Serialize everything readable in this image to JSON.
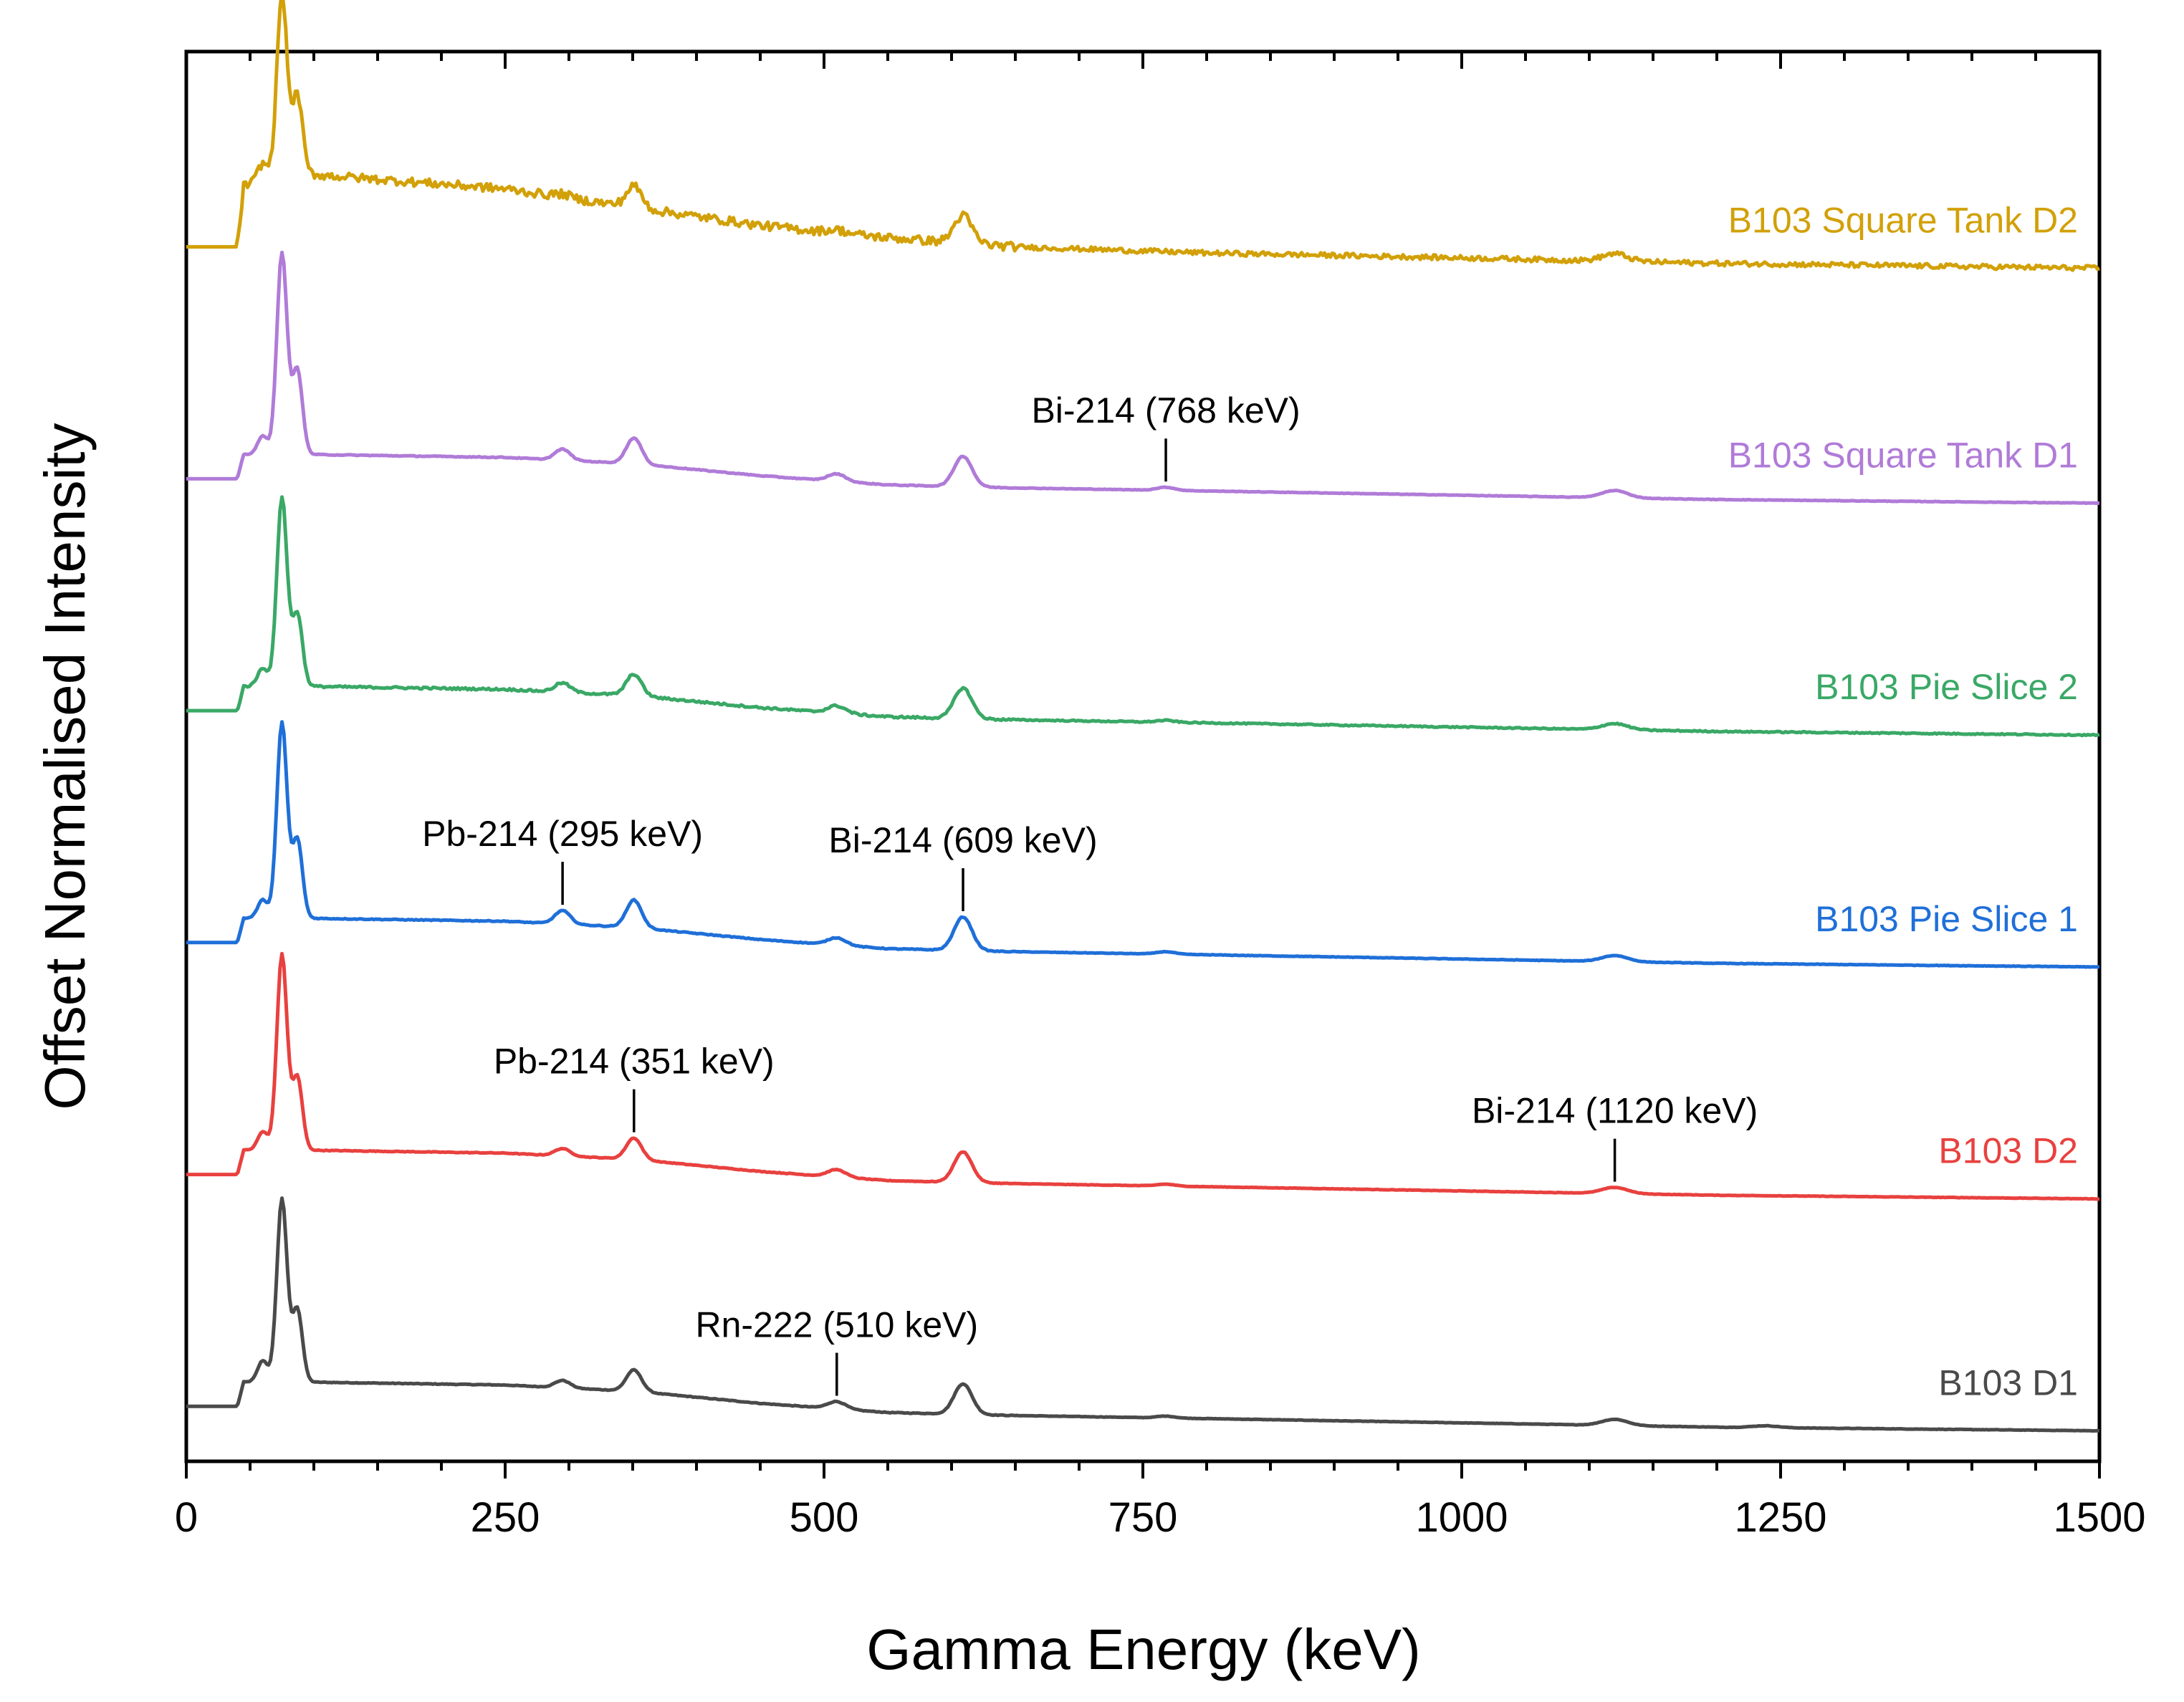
{
  "chart_data": {
    "type": "line",
    "title": "",
    "xlabel": "Gamma Energy (keV)",
    "ylabel": "Offset Normalised Intensity",
    "xlim": [
      0,
      1500
    ],
    "xticks": [
      0,
      250,
      500,
      750,
      1000,
      1250,
      1500
    ],
    "x_tick_labels": [
      "0",
      "250",
      "500",
      "750",
      "1000",
      "1250",
      "1500"
    ],
    "minor_tick_step": 50,
    "grid": false,
    "y_ticks_labeled": false,
    "series": [
      {
        "name": "B103 D1",
        "color": "#4a4a4a",
        "offset": 0,
        "noise": 0.004,
        "baseline": 0.6,
        "continuum": [
          [
            40,
            0.6
          ],
          [
            45,
            1.0
          ],
          [
            90,
            1.0
          ],
          [
            250,
            0.95
          ],
          [
            350,
            0.85
          ],
          [
            450,
            0.65
          ],
          [
            550,
            0.5
          ],
          [
            650,
            0.45
          ],
          [
            800,
            0.4
          ],
          [
            1000,
            0.33
          ],
          [
            1200,
            0.26
          ],
          [
            1500,
            0.2
          ]
        ],
        "peaks": [
          [
            60,
            0.35,
            4
          ],
          [
            75,
            3.0,
            4
          ],
          [
            87,
            1.2,
            4
          ],
          [
            295,
            0.12,
            6
          ],
          [
            351,
            0.35,
            6
          ],
          [
            510,
            0.12,
            7
          ],
          [
            609,
            0.5,
            7
          ],
          [
            768,
            0.03,
            7
          ],
          [
            1120,
            0.1,
            10
          ],
          [
            1238,
            0.03,
            10
          ]
        ]
      },
      {
        "name": "B103 D2",
        "color": "#e8413f",
        "offset": 3.8,
        "noise": 0.004,
        "baseline": 0.6,
        "continuum": [
          [
            40,
            0.6
          ],
          [
            45,
            1.0
          ],
          [
            90,
            1.0
          ],
          [
            250,
            0.95
          ],
          [
            350,
            0.85
          ],
          [
            450,
            0.65
          ],
          [
            550,
            0.5
          ],
          [
            650,
            0.45
          ],
          [
            800,
            0.4
          ],
          [
            1000,
            0.33
          ],
          [
            1200,
            0.26
          ],
          [
            1500,
            0.2
          ]
        ],
        "peaks": [
          [
            60,
            0.3,
            4
          ],
          [
            75,
            3.2,
            4
          ],
          [
            87,
            1.2,
            4
          ],
          [
            295,
            0.12,
            6
          ],
          [
            351,
            0.35,
            6
          ],
          [
            510,
            0.12,
            7
          ],
          [
            609,
            0.5,
            7
          ],
          [
            768,
            0.03,
            7
          ],
          [
            1120,
            0.1,
            10
          ]
        ]
      },
      {
        "name": "B103 Pie Slice 1",
        "color": "#1f6fd8",
        "offset": 7.6,
        "noise": 0.005,
        "baseline": 0.6,
        "continuum": [
          [
            40,
            0.6
          ],
          [
            45,
            1.0
          ],
          [
            90,
            1.0
          ],
          [
            250,
            0.95
          ],
          [
            350,
            0.85
          ],
          [
            450,
            0.65
          ],
          [
            550,
            0.5
          ],
          [
            650,
            0.45
          ],
          [
            800,
            0.4
          ],
          [
            1000,
            0.33
          ],
          [
            1200,
            0.26
          ],
          [
            1500,
            0.2
          ]
        ],
        "peaks": [
          [
            60,
            0.3,
            4
          ],
          [
            75,
            3.2,
            4
          ],
          [
            87,
            1.3,
            4
          ],
          [
            295,
            0.22,
            6
          ],
          [
            351,
            0.45,
            6
          ],
          [
            510,
            0.12,
            7
          ],
          [
            609,
            0.55,
            7
          ],
          [
            768,
            0.04,
            7
          ],
          [
            1120,
            0.1,
            10
          ]
        ]
      },
      {
        "name": "B103 Pie Slice 2",
        "color": "#3aa866",
        "offset": 11.4,
        "noise": 0.012,
        "baseline": 0.6,
        "continuum": [
          [
            40,
            0.6
          ],
          [
            45,
            1.0
          ],
          [
            90,
            1.0
          ],
          [
            250,
            0.95
          ],
          [
            350,
            0.85
          ],
          [
            450,
            0.65
          ],
          [
            550,
            0.5
          ],
          [
            650,
            0.45
          ],
          [
            800,
            0.4
          ],
          [
            1000,
            0.33
          ],
          [
            1200,
            0.26
          ],
          [
            1500,
            0.2
          ]
        ],
        "peaks": [
          [
            60,
            0.3,
            4
          ],
          [
            75,
            3.1,
            4
          ],
          [
            87,
            1.2,
            4
          ],
          [
            295,
            0.15,
            6
          ],
          [
            351,
            0.35,
            6
          ],
          [
            510,
            0.12,
            7
          ],
          [
            609,
            0.5,
            7
          ],
          [
            768,
            0.03,
            7
          ],
          [
            1120,
            0.1,
            10
          ]
        ]
      },
      {
        "name": "B103 Square Tank D1",
        "color": "#b07bd8",
        "offset": 15.2,
        "noise": 0.005,
        "baseline": 0.6,
        "continuum": [
          [
            40,
            0.6
          ],
          [
            45,
            1.0
          ],
          [
            90,
            1.0
          ],
          [
            250,
            0.95
          ],
          [
            350,
            0.85
          ],
          [
            450,
            0.65
          ],
          [
            550,
            0.5
          ],
          [
            650,
            0.45
          ],
          [
            800,
            0.4
          ],
          [
            1000,
            0.33
          ],
          [
            1200,
            0.26
          ],
          [
            1500,
            0.2
          ]
        ],
        "peaks": [
          [
            60,
            0.3,
            4
          ],
          [
            75,
            3.3,
            4
          ],
          [
            87,
            1.4,
            4
          ],
          [
            295,
            0.18,
            6
          ],
          [
            351,
            0.42,
            6
          ],
          [
            510,
            0.12,
            7
          ],
          [
            609,
            0.5,
            7
          ],
          [
            768,
            0.05,
            7
          ],
          [
            1120,
            0.12,
            10
          ]
        ]
      },
      {
        "name": "B103 Square Tank D2",
        "color": "#d2a008",
        "offset": 19.0,
        "noise": 0.05,
        "baseline": 0.6,
        "continuum": [
          [
            40,
            0.6
          ],
          [
            45,
            1.6
          ],
          [
            90,
            1.8
          ],
          [
            250,
            1.55
          ],
          [
            350,
            1.25
          ],
          [
            450,
            0.95
          ],
          [
            550,
            0.75
          ],
          [
            650,
            0.6
          ],
          [
            800,
            0.5
          ],
          [
            1000,
            0.42
          ],
          [
            1200,
            0.33
          ],
          [
            1500,
            0.25
          ]
        ],
        "peaks": [
          [
            60,
            0.3,
            4
          ],
          [
            75,
            3.0,
            4
          ],
          [
            87,
            1.3,
            4
          ],
          [
            295,
            0.05,
            6
          ],
          [
            351,
            0.35,
            6
          ],
          [
            510,
            0.05,
            7
          ],
          [
            609,
            0.45,
            7
          ],
          [
            1120,
            0.12,
            10
          ]
        ]
      }
    ],
    "annotations": [
      {
        "text": "Pb-214 (295 keV)",
        "energy": 295,
        "series": "B103 Pie Slice 1"
      },
      {
        "text": "Bi-214 (609 keV)",
        "energy": 609,
        "series": "B103 Pie Slice 1"
      },
      {
        "text": "Pb-214 (351 keV)",
        "energy": 351,
        "series": "B103 D2"
      },
      {
        "text": "Bi-214 (1120 keV)",
        "energy": 1120,
        "series": "B103 D2"
      },
      {
        "text": "Rn-222 (510 keV)",
        "energy": 510,
        "series": "B103 D1"
      },
      {
        "text": "Bi-214 (768 keV)",
        "energy": 768,
        "series": "B103 Square Tank D1"
      }
    ]
  }
}
